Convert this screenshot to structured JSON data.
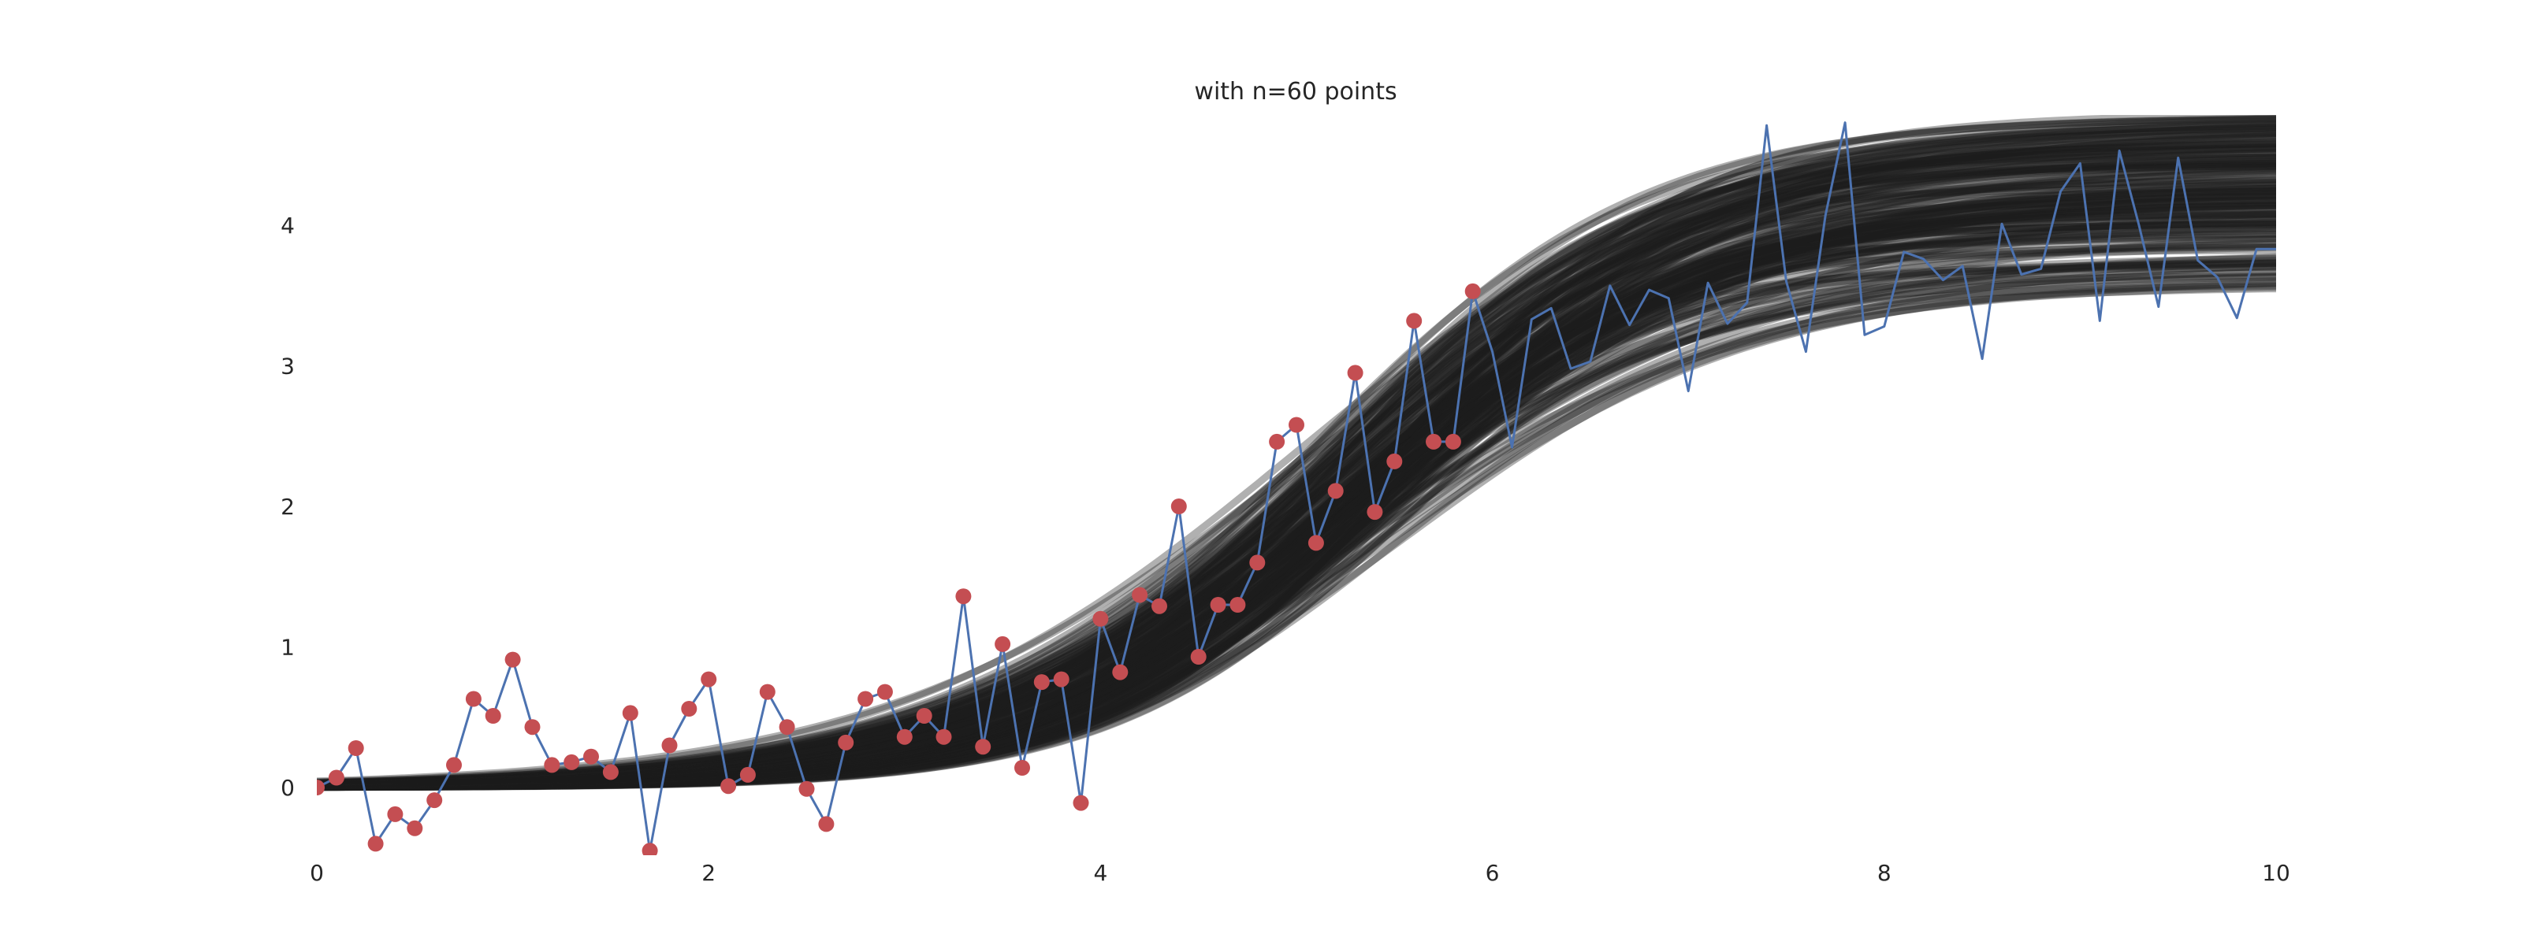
{
  "chart_data": {
    "type": "line",
    "title": "with n=60 points",
    "xlabel": "",
    "ylabel": "",
    "xlim": [
      0,
      10
    ],
    "ylim": [
      -0.4,
      4.8
    ],
    "x_ticks": [
      0,
      2,
      4,
      6,
      8,
      10
    ],
    "y_ticks": [
      0,
      1,
      2,
      3,
      4
    ],
    "grid": false,
    "colors": {
      "observed_line": "#4c72b0",
      "training_points": "#c44e52",
      "posterior_samples": "#1c1c1c"
    },
    "observed_series": {
      "x": [
        0.0,
        0.1,
        0.2,
        0.3,
        0.4,
        0.5,
        0.6,
        0.7,
        0.8,
        0.9,
        1.0,
        1.1,
        1.2,
        1.3,
        1.4,
        1.5,
        1.6,
        1.7,
        1.8,
        1.9,
        2.0,
        2.1,
        2.2,
        2.3,
        2.4,
        2.5,
        2.6,
        2.7,
        2.8,
        2.9,
        3.0,
        3.1,
        3.2,
        3.3,
        3.4,
        3.5,
        3.6,
        3.7,
        3.8,
        3.9,
        4.0,
        4.1,
        4.2,
        4.3,
        4.4,
        4.5,
        4.6,
        4.7,
        4.8,
        4.9,
        5.0,
        5.1,
        5.2,
        5.3,
        5.4,
        5.5,
        5.6,
        5.7,
        5.8,
        5.9,
        6.0,
        6.1,
        6.2,
        6.3,
        6.4,
        6.5,
        6.6,
        6.7,
        6.8,
        6.9,
        7.0,
        7.1,
        7.2,
        7.3,
        7.4,
        7.5,
        7.6,
        7.7,
        7.8,
        7.9,
        8.0,
        8.1,
        8.2,
        8.3,
        8.4,
        8.5,
        8.6,
        8.7,
        8.8,
        8.9,
        9.0,
        9.1,
        9.2,
        9.3,
        9.4,
        9.5,
        9.6,
        9.7,
        9.8,
        9.9,
        10.0
      ],
      "y": [
        0.0,
        0.07,
        0.28,
        -0.4,
        -0.19,
        -0.29,
        -0.09,
        0.16,
        0.63,
        0.51,
        0.91,
        0.43,
        0.16,
        0.18,
        0.22,
        0.11,
        0.53,
        -0.45,
        0.3,
        0.56,
        0.77,
        0.01,
        0.09,
        0.68,
        0.43,
        -0.01,
        -0.26,
        0.32,
        0.63,
        0.68,
        0.36,
        0.51,
        0.36,
        1.36,
        0.29,
        1.02,
        0.14,
        0.75,
        0.77,
        -0.11,
        1.2,
        0.82,
        1.37,
        1.29,
        2.0,
        0.93,
        1.3,
        1.3,
        1.6,
        2.46,
        2.58,
        1.74,
        2.11,
        2.95,
        1.96,
        2.32,
        3.32,
        2.46,
        2.46,
        3.53,
        3.1,
        2.42,
        3.33,
        3.41,
        2.98,
        3.03,
        3.57,
        3.29,
        3.54,
        3.48,
        2.82,
        3.59,
        3.3,
        3.45,
        4.71,
        3.6,
        3.1,
        4.07,
        4.73,
        3.22,
        3.28,
        3.81,
        3.76,
        3.61,
        3.71,
        3.05,
        4.01,
        3.65,
        3.69,
        4.24,
        4.44,
        3.32,
        4.53,
        4.0,
        3.42,
        4.48,
        3.75,
        3.63,
        3.34,
        3.83,
        3.83
      ]
    },
    "training_points": {
      "x": [
        0.0,
        0.1,
        0.2,
        0.3,
        0.4,
        0.5,
        0.6,
        0.7,
        0.8,
        0.9,
        1.0,
        1.1,
        1.2,
        1.3,
        1.4,
        1.5,
        1.6,
        1.7,
        1.8,
        1.9,
        2.0,
        2.1,
        2.2,
        2.3,
        2.4,
        2.5,
        2.6,
        2.7,
        2.8,
        2.9,
        3.0,
        3.1,
        3.2,
        3.3,
        3.4,
        3.5,
        3.6,
        3.7,
        3.8,
        3.9,
        4.0,
        4.1,
        4.2,
        4.3,
        4.4,
        4.5,
        4.6,
        4.7,
        4.8,
        4.9,
        5.0,
        5.1,
        5.2,
        5.3,
        5.4,
        5.5,
        5.6,
        5.7,
        5.8,
        5.9
      ],
      "y": [
        0.0,
        0.07,
        0.28,
        -0.4,
        -0.19,
        -0.29,
        -0.09,
        0.16,
        0.63,
        0.51,
        0.91,
        0.43,
        0.16,
        0.18,
        0.22,
        0.11,
        0.53,
        -0.45,
        0.3,
        0.56,
        0.77,
        0.01,
        0.09,
        0.68,
        0.43,
        -0.01,
        -0.26,
        0.32,
        0.63,
        0.68,
        0.36,
        0.51,
        0.36,
        1.36,
        0.29,
        1.02,
        0.14,
        0.75,
        0.77,
        -0.11,
        1.2,
        0.82,
        1.37,
        1.29,
        2.0,
        0.93,
        1.3,
        1.3,
        1.6,
        2.46,
        2.58,
        1.74,
        2.11,
        2.95,
        1.96,
        2.32,
        3.32,
        2.46,
        2.46,
        3.53
      ]
    },
    "posterior_samples": {
      "curve": "logistic",
      "count": 160,
      "center_range": [
        5.0,
        5.6
      ],
      "slope_range": [
        0.9,
        1.45
      ],
      "max_range": [
        3.52,
        4.8
      ]
    }
  }
}
